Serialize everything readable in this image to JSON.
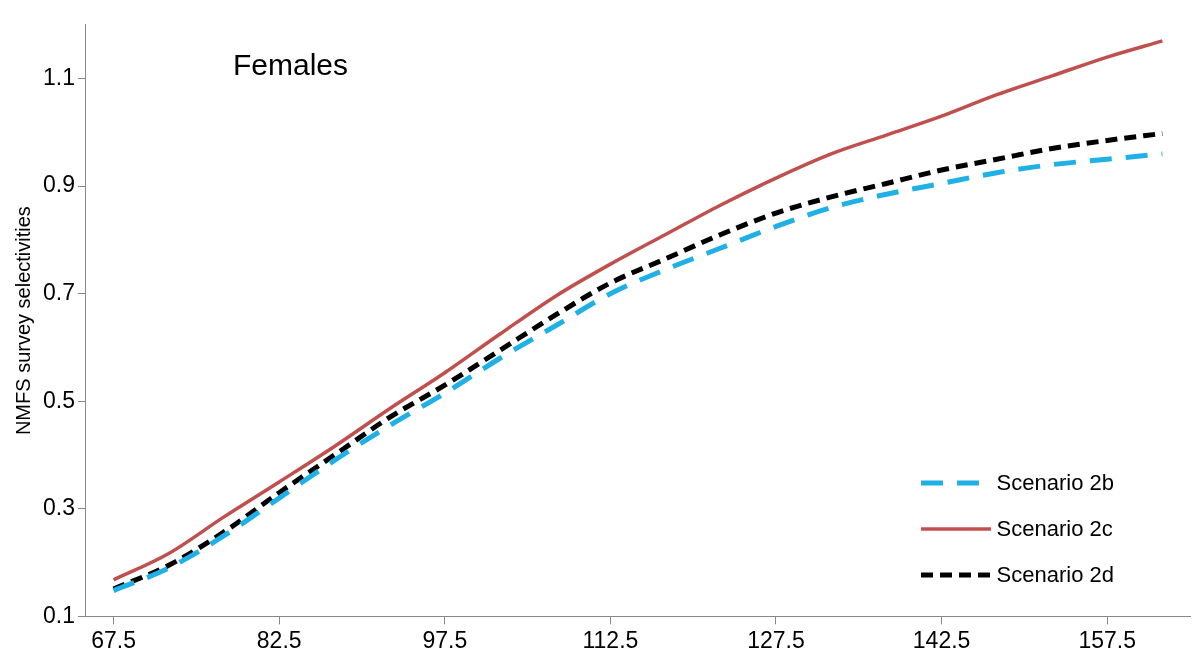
{
  "chart_data": {
    "type": "line",
    "title": "Females",
    "ylabel": "NMFS survey selectivities",
    "x": [
      67.5,
      72.5,
      77.5,
      82.5,
      87.5,
      92.5,
      97.5,
      102.5,
      107.5,
      112.5,
      117.5,
      122.5,
      127.5,
      132.5,
      137.5,
      142.5,
      147.5,
      152.5,
      157.5,
      162.5
    ],
    "xlim": [
      65,
      165
    ],
    "xticks": [
      67.5,
      82.5,
      97.5,
      112.5,
      127.5,
      142.5,
      157.5
    ],
    "ylim": [
      0.1,
      1.2
    ],
    "yticks": [
      0.1,
      0.3,
      0.5,
      0.7,
      0.9,
      1.1
    ],
    "grid": false,
    "legend": "bottom right",
    "marker": "none",
    "series": [
      {
        "name": "Scenario 2b",
        "color": "#1fb0e6",
        "line_style": "dashed",
        "values": [
          0.148,
          0.19,
          0.25,
          0.32,
          0.39,
          0.455,
          0.515,
          0.58,
          0.64,
          0.7,
          0.745,
          0.785,
          0.825,
          0.86,
          0.885,
          0.905,
          0.925,
          0.94,
          0.95,
          0.96
        ]
      },
      {
        "name": "Scenario 2c",
        "color": "#c0504d",
        "line_style": "solid",
        "values": [
          0.168,
          0.217,
          0.285,
          0.35,
          0.416,
          0.486,
          0.553,
          0.625,
          0.695,
          0.755,
          0.81,
          0.865,
          0.915,
          0.96,
          0.995,
          1.03,
          1.07,
          1.105,
          1.14,
          1.17
        ]
      },
      {
        "name": "Scenario 2d",
        "color": "#000000",
        "line_style": "dashed",
        "values": [
          0.151,
          0.195,
          0.257,
          0.33,
          0.4,
          0.47,
          0.53,
          0.595,
          0.66,
          0.72,
          0.765,
          0.81,
          0.85,
          0.88,
          0.905,
          0.93,
          0.95,
          0.97,
          0.985,
          0.998
        ]
      }
    ]
  }
}
